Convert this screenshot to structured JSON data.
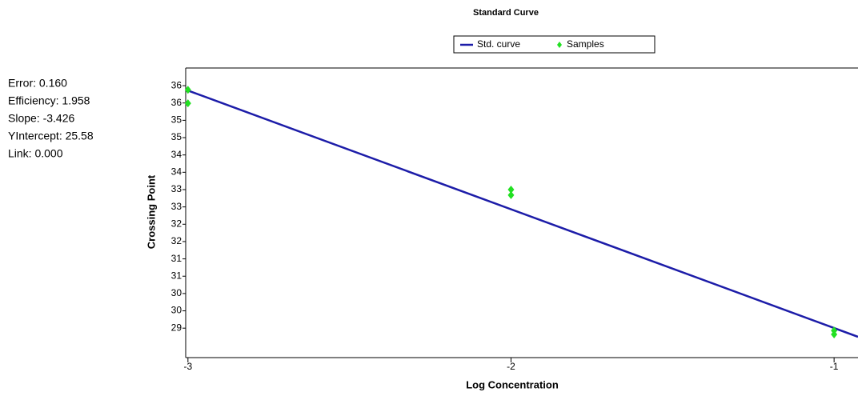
{
  "chart_data": {
    "type": "line",
    "title": "Standard Curve",
    "xlabel": "Log Concentration",
    "ylabel": "Crossing Point",
    "annotations": [
      "Error: 0.160",
      "Efficiency: 1.958",
      "Slope: -3.426",
      "YIntercept: 25.58",
      "Link: 0.000"
    ],
    "xlim": [
      -3.007,
      -0.926
    ],
    "ylim": [
      28.15,
      36.51
    ],
    "xticks": [
      -3,
      -2,
      -1
    ],
    "yticks": [
      36,
      {
        "value": 35.5,
        "label": "36"
      },
      35,
      {
        "value": 34.5,
        "label": "35"
      },
      34,
      {
        "value": 33.5,
        "label": "34"
      },
      33,
      {
        "value": 32.5,
        "label": "33"
      },
      32,
      {
        "value": 31.5,
        "label": "32"
      },
      31,
      {
        "value": 30.5,
        "label": "31"
      },
      30,
      {
        "value": 29.5,
        "label": "30"
      },
      29
    ],
    "series": [
      {
        "name": "Std. curve",
        "type": "line",
        "color": "#1c1ca8",
        "x": [
          -3,
          -0.926
        ],
        "values": [
          35.86,
          28.75
        ]
      },
      {
        "name": "Samples",
        "type": "scatter",
        "color": "#22e022",
        "x": [
          -3,
          -3,
          -2,
          -2,
          -1,
          -1
        ],
        "values": [
          35.88,
          35.49,
          33.0,
          32.84,
          28.93,
          28.82
        ]
      }
    ]
  }
}
